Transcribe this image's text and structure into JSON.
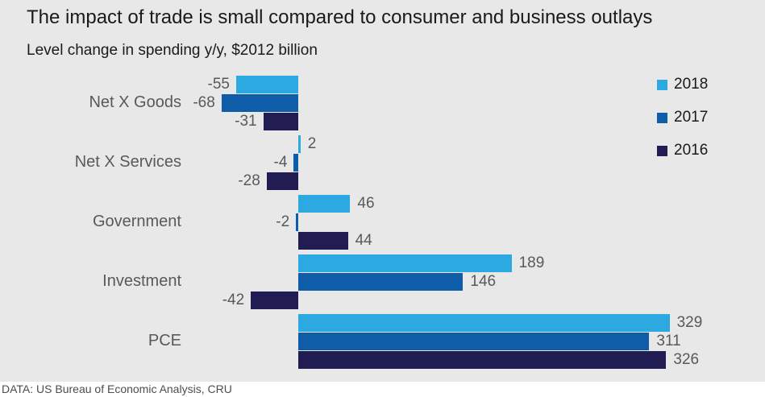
{
  "title": "The impact of trade is small compared to consumer and business outlays",
  "subtitle": "Level change in spending y/y, $2012 billion",
  "footer_source": "DATA: US Bureau of Economic Analysis, CRU",
  "colors": {
    "background": "#e8e8e8",
    "series_2018": "#2ba9e0",
    "series_2017": "#0f5ca8",
    "series_2016": "#211c52",
    "label_gray": "#595959"
  },
  "chart_data": {
    "type": "bar",
    "orientation": "horizontal",
    "title": "The impact of trade is small compared to consumer and business outlays",
    "subtitle": "Level change in spending y/y, $2012 billion",
    "categories": [
      "Net X Goods",
      "Net X Services",
      "Government",
      "Investment",
      "PCE"
    ],
    "series": [
      {
        "name": "2018",
        "color": "#2ba9e0",
        "values": [
          -55,
          2,
          46,
          189,
          329
        ]
      },
      {
        "name": "2017",
        "color": "#0f5ca8",
        "values": [
          -68,
          -4,
          -2,
          146,
          311
        ]
      },
      {
        "name": "2016",
        "color": "#211c52",
        "values": [
          -31,
          -28,
          44,
          -42,
          326
        ]
      }
    ],
    "xlim": [
      -120,
      400
    ],
    "grid": false,
    "legend_position": "right",
    "value_labels": true
  }
}
